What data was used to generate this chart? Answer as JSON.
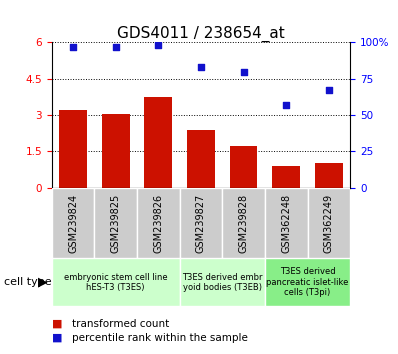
{
  "title": "GDS4011 / 238654_at",
  "samples": [
    "GSM239824",
    "GSM239825",
    "GSM239826",
    "GSM239827",
    "GSM239828",
    "GSM362248",
    "GSM362249"
  ],
  "transformed_count": [
    3.2,
    3.05,
    3.75,
    2.4,
    1.7,
    0.9,
    1.0
  ],
  "percentile_rank": [
    97,
    97,
    98,
    83,
    80,
    57,
    67
  ],
  "ylim_left": [
    0,
    6
  ],
  "ylim_right": [
    0,
    100
  ],
  "yticks_left": [
    0,
    1.5,
    3.0,
    4.5,
    6
  ],
  "yticks_right": [
    0,
    25,
    50,
    75,
    100
  ],
  "bar_color": "#cc1100",
  "dot_color": "#1111cc",
  "group_starts": [
    0,
    3,
    5
  ],
  "group_ends": [
    3,
    5,
    7
  ],
  "group_labels": [
    "embryonic stem cell line\nhES-T3 (T3ES)",
    "T3ES derived embr\nyoid bodies (T3EB)",
    "T3ES derived\npancreatic islet-like\ncells (T3pi)"
  ],
  "group_colors": [
    "#ccffcc",
    "#ccffcc",
    "#88ee88"
  ],
  "cell_type_label": "cell type",
  "legend_bar_label": "transformed count",
  "legend_dot_label": "percentile rank within the sample",
  "sample_box_color": "#cccccc",
  "title_fontsize": 11,
  "tick_fontsize": 7.5,
  "sample_fontsize": 7,
  "group_fontsize": 6,
  "legend_fontsize": 7.5,
  "cell_type_fontsize": 8
}
